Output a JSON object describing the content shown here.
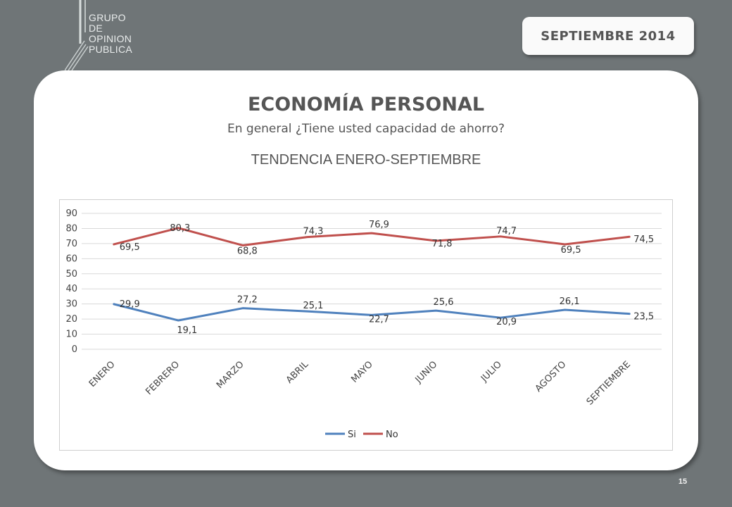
{
  "logo": {
    "lines": [
      "GRUPO",
      "DE",
      "OPINION",
      "PUBLICA"
    ]
  },
  "header": {
    "date_label": "SEPTIEMBRE  2014"
  },
  "main": {
    "title": "ECONOMÍA PERSONAL",
    "subtitle": "En general ¿Tiene usted capacidad de ahorro?",
    "trend_label": "TENDENCIA ENERO-SEPTIEMBRE"
  },
  "footer": {
    "page_number": "15"
  },
  "chart_data": {
    "type": "line",
    "categories": [
      "ENERO",
      "FEBRERO",
      "MARZO",
      "ABRIL",
      "MAYO",
      "JUNIO",
      "JULIO",
      "AGOSTO",
      "SEPTIEMBRE"
    ],
    "series": [
      {
        "name": "Si",
        "color": "#4f81bd",
        "values": [
          29.9,
          19.1,
          27.2,
          25.1,
          22.7,
          25.6,
          20.9,
          26.1,
          23.5
        ],
        "labels": [
          "29,9",
          "19,1",
          "27,2",
          "25,1",
          "22,7",
          "25,6",
          "20,9",
          "26,1",
          "23,5"
        ]
      },
      {
        "name": "No",
        "color": "#c0504d",
        "values": [
          69.5,
          80.3,
          68.8,
          74.3,
          76.9,
          71.8,
          74.7,
          69.5,
          74.5
        ],
        "labels": [
          "69,5",
          "80,3",
          "68,8",
          "74,3",
          "76,9",
          "71,8",
          "74,7",
          "69,5",
          "74,5"
        ]
      }
    ],
    "ylim": [
      0,
      90
    ],
    "yticks": [
      0,
      10,
      20,
      30,
      40,
      50,
      60,
      70,
      80,
      90
    ],
    "grid": true,
    "legend": "bottom"
  }
}
